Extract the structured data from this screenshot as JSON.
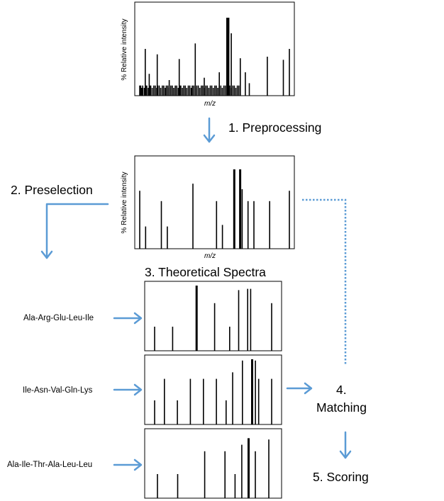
{
  "labels": {
    "raw_y_axis": "% Relative intensity",
    "raw_x_axis": "m/z",
    "pre_y_axis": "% Relative intensity",
    "pre_x_axis": "m/z"
  },
  "steps": {
    "preprocessing": "1. Preprocessing",
    "preselection": "2. Preselection",
    "theoretical": "3.  Theoretical Spectra",
    "matching_num": "4.",
    "matching": "Matching",
    "scoring": "5. Scoring"
  },
  "peptides": [
    "Ala-Arg-Glu-Leu-Ile",
    "Ile-Asn-Val-Gln-Lys",
    "Ala-Ile-Thr-Ala-Leu-Leu"
  ],
  "colors": {
    "arrow": "#5b9bd5",
    "line": "#000000"
  },
  "chart_data": [
    {
      "type": "bar",
      "description_role": "raw spectrum",
      "xlabel": "m/z",
      "ylabel": "% Relative intensity",
      "x": [
        0.5,
        1.5,
        2.5,
        3.5,
        5,
        6.5,
        7.5,
        9,
        10.5,
        11.5,
        13,
        14.5,
        16,
        17.5,
        18.5,
        20,
        21.5,
        23,
        24.5,
        26,
        27,
        28.5,
        30,
        31.5,
        33,
        34.5,
        36,
        37.5,
        39,
        40.5,
        41.5,
        43,
        44.5,
        46,
        47.5,
        49,
        50.5,
        52,
        53,
        54.5,
        56,
        57.5,
        59,
        60.5,
        62,
        63.5,
        65,
        66.5,
        68,
        69.5,
        71,
        72.5,
        74,
        75.5,
        77,
        78.5,
        80,
        81.5,
        83,
        84.5,
        86,
        87.5,
        89,
        90.5,
        92,
        93.5,
        95,
        96.5,
        98,
        99.5,
        6,
        10,
        18,
        30,
        40,
        56,
        65,
        80,
        88,
        89,
        92,
        101,
        106,
        110,
        128,
        144,
        150
      ],
      "values": [
        13,
        13,
        10,
        13,
        10,
        13,
        13,
        10,
        13,
        13,
        10,
        13,
        13,
        10,
        13,
        13,
        10,
        13,
        13,
        10,
        13,
        13,
        10,
        13,
        13,
        10,
        13,
        13,
        10,
        13,
        13,
        10,
        13,
        13,
        10,
        13,
        13,
        10,
        13,
        13,
        10,
        13,
        13,
        10,
        13,
        13,
        10,
        13,
        13,
        10,
        13,
        13,
        10,
        13,
        13,
        10,
        13,
        13,
        10,
        13,
        13,
        10,
        13,
        13,
        10,
        13,
        13,
        10,
        13,
        13,
        60,
        28,
        53,
        20,
        47,
        67,
        23,
        30,
        100,
        100,
        80,
        48,
        30,
        16,
        50,
        46,
        60
      ]
    },
    {
      "type": "bar",
      "description_role": "preprocessed spectrum",
      "xlabel": "m/z",
      "ylabel": "% Relative intensity",
      "x": [
        1,
        4,
        12,
        15,
        28,
        40,
        43,
        49,
        52,
        53,
        56,
        59,
        67,
        77
      ],
      "values": [
        73,
        28,
        60,
        28,
        82,
        60,
        30,
        100,
        100,
        75,
        60,
        60,
        60,
        73
      ]
    },
    {
      "type": "bar",
      "description_role": "theoretical spectrum",
      "xlabel": "",
      "ylabel": "",
      "x": [
        1,
        7,
        15,
        21,
        26,
        29,
        32,
        33,
        40
      ],
      "values": [
        37,
        37,
        100,
        73,
        37,
        93,
        95,
        95,
        73
      ]
    },
    {
      "type": "bar",
      "description_role": "theoretical spectrum",
      "xlabel": "",
      "ylabel": "",
      "x": [
        1,
        4,
        8,
        12,
        16,
        20,
        23,
        25,
        28,
        31,
        32,
        33,
        37
      ],
      "values": [
        37,
        70,
        37,
        70,
        70,
        70,
        37,
        80,
        98,
        100,
        98,
        70,
        70
      ]
    },
    {
      "type": "bar",
      "description_role": "theoretical spectrum",
      "xlabel": "",
      "ylabel": "",
      "x": [
        1,
        7,
        15,
        21,
        24,
        26,
        28,
        30,
        34
      ],
      "values": [
        37,
        37,
        72,
        72,
        37,
        82,
        92,
        72,
        90
      ]
    }
  ]
}
